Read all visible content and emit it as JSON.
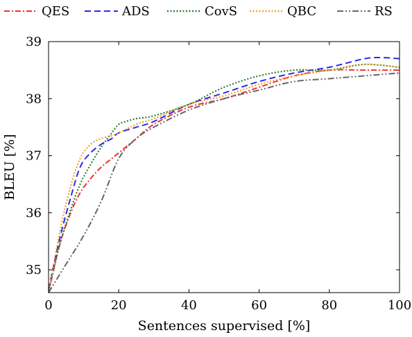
{
  "chart_data": {
    "type": "line",
    "title": "",
    "xlabel": "Sentences supervised [%]",
    "ylabel": "BLEU [%]",
    "xlim": [
      0,
      100
    ],
    "ylim": [
      34.6,
      39.0
    ],
    "xticks": [
      "0",
      "20",
      "40",
      "60",
      "80",
      "100"
    ],
    "yticks": [
      "35",
      "36",
      "37",
      "38",
      "39"
    ],
    "grid": false,
    "legend": "top",
    "series": [
      {
        "name": "QES",
        "color": "#ee3333",
        "dash": "dashdot",
        "x": [
          0,
          3,
          6,
          9,
          12,
          15,
          18,
          20,
          25,
          30,
          40,
          50,
          60,
          70,
          80,
          90,
          100
        ],
        "y": [
          34.6,
          35.4,
          35.95,
          36.35,
          36.6,
          36.8,
          36.95,
          37.05,
          37.3,
          37.55,
          37.85,
          38.0,
          38.2,
          38.4,
          38.5,
          38.5,
          38.5
        ]
      },
      {
        "name": "ADS",
        "color": "#2a2aee",
        "dash": "dashed",
        "x": [
          0,
          3,
          6,
          9,
          12,
          15,
          18,
          20,
          25,
          30,
          40,
          50,
          60,
          70,
          80,
          90,
          95,
          100
        ],
        "y": [
          34.65,
          35.5,
          36.2,
          36.8,
          37.05,
          37.2,
          37.3,
          37.4,
          37.5,
          37.6,
          37.9,
          38.1,
          38.3,
          38.45,
          38.55,
          38.7,
          38.72,
          38.7
        ]
      },
      {
        "name": "CovS",
        "color": "#2e7d32",
        "dash": "dotted",
        "x": [
          0,
          3,
          6,
          9,
          12,
          15,
          18,
          20,
          22,
          25,
          30,
          40,
          50,
          60,
          70,
          80,
          90,
          100
        ],
        "y": [
          34.6,
          35.4,
          36.0,
          36.5,
          36.85,
          37.15,
          37.4,
          37.55,
          37.6,
          37.65,
          37.7,
          37.9,
          38.2,
          38.4,
          38.5,
          38.5,
          38.6,
          38.55
        ]
      },
      {
        "name": "QBC",
        "color": "#f0a030",
        "dash": "dotted",
        "x": [
          0,
          3,
          6,
          9,
          12,
          15,
          18,
          20,
          25,
          30,
          40,
          50,
          60,
          70,
          80,
          90,
          100
        ],
        "y": [
          34.6,
          35.6,
          36.4,
          36.95,
          37.2,
          37.3,
          37.35,
          37.4,
          37.55,
          37.65,
          37.9,
          38.05,
          38.25,
          38.4,
          38.5,
          38.6,
          38.55
        ]
      },
      {
        "name": "RS",
        "color": "#666666",
        "dash": "dashdotdot",
        "x": [
          0,
          5,
          10,
          15,
          20,
          25,
          30,
          40,
          50,
          60,
          70,
          80,
          90,
          100
        ],
        "y": [
          34.6,
          35.1,
          35.6,
          36.2,
          36.95,
          37.3,
          37.5,
          37.8,
          38.0,
          38.15,
          38.3,
          38.35,
          38.4,
          38.45
        ]
      }
    ]
  }
}
